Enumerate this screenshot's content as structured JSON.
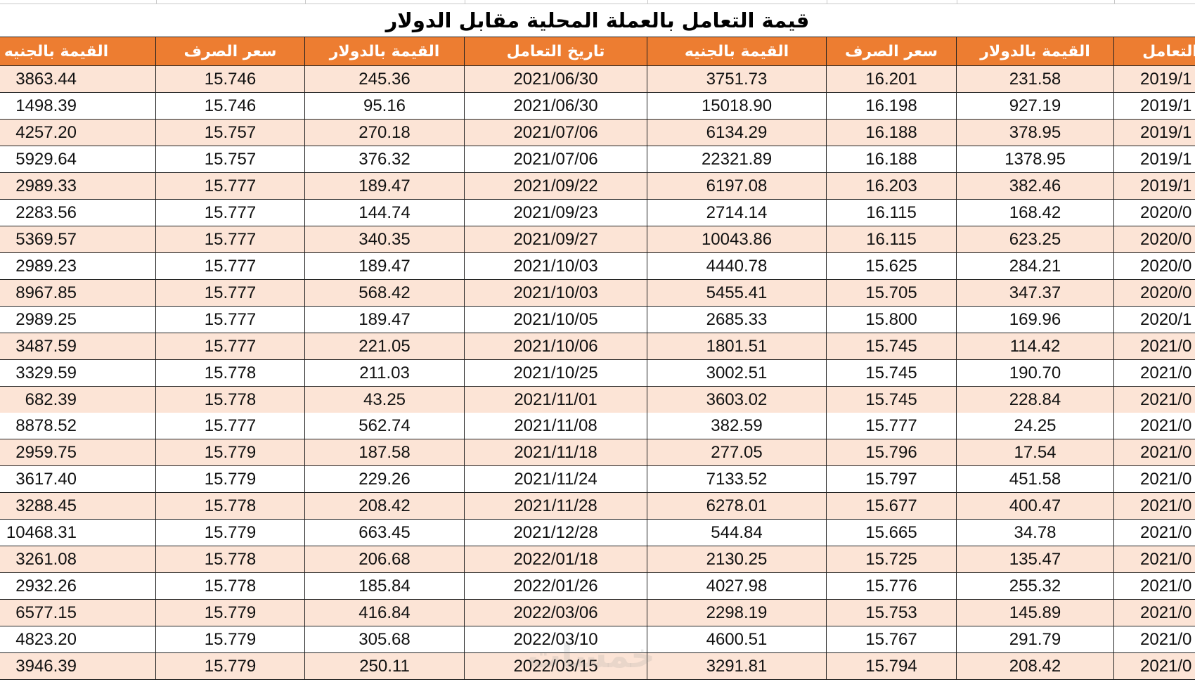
{
  "title": "قيمة التعامل بالعملة المحلية مقابل الدولار",
  "colors": {
    "header_bg": "#ed7d31",
    "header_text": "#ffffff",
    "band": "#fce4d6"
  },
  "headers": [
    "القيمة بالجنيه",
    "سعر الصرف",
    "القيمة بالدولار",
    "تاريخ التعامل",
    "القيمة بالجنيه",
    "سعر الصرف",
    "القيمة بالدولار",
    "تاريخ التعامل"
  ],
  "rows": [
    [
      "3863.44",
      "15.746",
      "245.36",
      "2021/06/30",
      "3751.73",
      "16.201",
      "231.58",
      "2019/1"
    ],
    [
      "1498.39",
      "15.746",
      "95.16",
      "2021/06/30",
      "15018.90",
      "16.198",
      "927.19",
      "2019/1"
    ],
    [
      "4257.20",
      "15.757",
      "270.18",
      "2021/07/06",
      "6134.29",
      "16.188",
      "378.95",
      "2019/1"
    ],
    [
      "5929.64",
      "15.757",
      "376.32",
      "2021/07/06",
      "22321.89",
      "16.188",
      "1378.95",
      "2019/1"
    ],
    [
      "2989.33",
      "15.777",
      "189.47",
      "2021/09/22",
      "6197.08",
      "16.203",
      "382.46",
      "2019/1"
    ],
    [
      "2283.56",
      "15.777",
      "144.74",
      "2021/09/23",
      "2714.14",
      "16.115",
      "168.42",
      "2020/0"
    ],
    [
      "5369.57",
      "15.777",
      "340.35",
      "2021/09/27",
      "10043.86",
      "16.115",
      "623.25",
      "2020/0"
    ],
    [
      "2989.23",
      "15.777",
      "189.47",
      "2021/10/03",
      "4440.78",
      "15.625",
      "284.21",
      "2020/0"
    ],
    [
      "8967.85",
      "15.777",
      "568.42",
      "2021/10/03",
      "5455.41",
      "15.705",
      "347.37",
      "2020/0"
    ],
    [
      "2989.25",
      "15.777",
      "189.47",
      "2021/10/05",
      "2685.33",
      "15.800",
      "169.96",
      "2020/1"
    ],
    [
      "3487.59",
      "15.777",
      "221.05",
      "2021/10/06",
      "1801.51",
      "15.745",
      "114.42",
      "2021/0"
    ],
    [
      "3329.59",
      "15.778",
      "211.03",
      "2021/10/25",
      "3002.51",
      "15.745",
      "190.70",
      "2021/0"
    ],
    [
      "682.39",
      "15.778",
      "43.25",
      "2021/11/01",
      "3603.02",
      "15.745",
      "228.84",
      "2021/0"
    ],
    [
      "8878.52",
      "15.777",
      "562.74",
      "2021/11/08",
      "382.59",
      "15.777",
      "24.25",
      "2021/0"
    ],
    [
      "2959.75",
      "15.779",
      "187.58",
      "2021/11/18",
      "277.05",
      "15.796",
      "17.54",
      "2021/0"
    ],
    [
      "3617.40",
      "15.779",
      "229.26",
      "2021/11/24",
      "7133.52",
      "15.797",
      "451.58",
      "2021/0"
    ],
    [
      "3288.45",
      "15.778",
      "208.42",
      "2021/11/28",
      "6278.01",
      "15.677",
      "400.47",
      "2021/0"
    ],
    [
      "10468.31",
      "15.779",
      "663.45",
      "2021/12/28",
      "544.84",
      "15.665",
      "34.78",
      "2021/0"
    ],
    [
      "3261.08",
      "15.778",
      "206.68",
      "2022/01/18",
      "2130.25",
      "15.725",
      "135.47",
      "2021/0"
    ],
    [
      "2932.26",
      "15.778",
      "185.84",
      "2022/01/26",
      "4027.98",
      "15.776",
      "255.32",
      "2021/0"
    ],
    [
      "6577.15",
      "15.779",
      "416.84",
      "2022/03/06",
      "2298.19",
      "15.753",
      "145.89",
      "2021/0"
    ],
    [
      "4823.20",
      "15.779",
      "305.68",
      "2022/03/10",
      "4600.51",
      "15.767",
      "291.79",
      "2021/0"
    ],
    [
      "3946.39",
      "15.779",
      "250.11",
      "2022/03/15",
      "3291.81",
      "15.794",
      "208.42",
      "2021/0"
    ]
  ],
  "watermark": "خمسات"
}
